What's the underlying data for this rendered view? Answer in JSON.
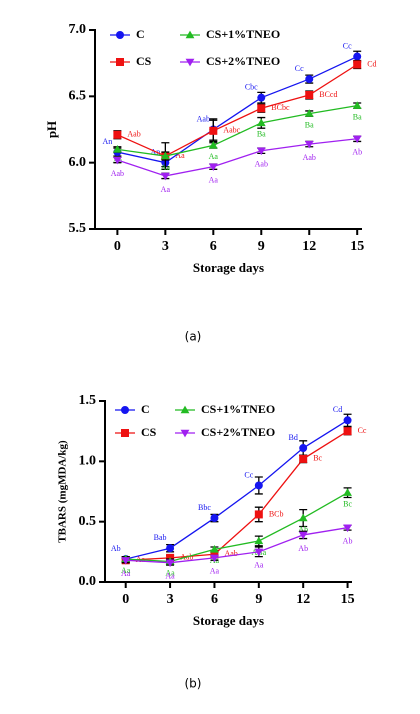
{
  "chart_data": [
    {
      "type": "line",
      "caption": "(a)",
      "ylabel": "pH",
      "xlabel": "Storage days",
      "x": [
        0,
        3,
        6,
        9,
        12,
        15
      ],
      "xlim": [
        -1.4,
        15.3
      ],
      "xticks": [
        0,
        3,
        6,
        9,
        12,
        15
      ],
      "ylim": [
        5.5,
        7.0
      ],
      "yticks": [
        {
          "value": 5.5,
          "label": "5.5"
        },
        {
          "value": 6.0,
          "label": "6.0"
        },
        {
          "value": 6.5,
          "label": "6.5"
        },
        {
          "value": 7.0,
          "label": "7.0"
        }
      ],
      "series": [
        {
          "name": "C",
          "color": "#1515f0",
          "marker": "circle",
          "values": [
            6.08,
            6.0,
            6.25,
            6.49,
            6.63,
            6.8
          ],
          "errors": [
            0.03,
            0.03,
            0.08,
            0.04,
            0.03,
            0.04
          ],
          "point_labels": [
            "An",
            "An",
            "Aab",
            "Cbc",
            "Cc",
            "Cc"
          ]
        },
        {
          "name": "CS",
          "color": "#ee1111",
          "marker": "square",
          "values": [
            6.21,
            6.05,
            6.24,
            6.41,
            6.51,
            6.74
          ],
          "errors": [
            0.03,
            0.1,
            0.08,
            0.03,
            0.03,
            0.03
          ],
          "point_labels": [
            "Aab",
            "Aa",
            "Aabc",
            "BCbc",
            "BCcd",
            "Cd"
          ]
        },
        {
          "name": "CS+1%TNEO",
          "color": "#22bb22",
          "marker": "triangle-up",
          "values": [
            6.1,
            6.05,
            6.13,
            6.3,
            6.37,
            6.43
          ],
          "errors": [
            0.02,
            0.03,
            0.02,
            0.04,
            0.02,
            0.02
          ],
          "point_labels": [
            "Aa",
            "Aa",
            "Aa",
            "Ba",
            "Ba",
            "Ba"
          ]
        },
        {
          "name": "CS+2%TNEO",
          "color": "#a020f0",
          "marker": "triangle-down",
          "values": [
            6.02,
            5.9,
            5.97,
            6.09,
            6.14,
            6.18
          ],
          "errors": [
            0.02,
            0.02,
            0.02,
            0.02,
            0.02,
            0.02
          ],
          "point_labels": [
            "Aab",
            "Aa",
            "Aa",
            "Aab",
            "Aab",
            "Ab"
          ]
        }
      ]
    },
    {
      "type": "line",
      "caption": "(b)",
      "ylabel": "TBARS (mgMDA/kg)",
      "xlabel": "Storage days",
      "x": [
        0,
        3,
        6,
        9,
        12,
        15
      ],
      "xlim": [
        -1.4,
        15.3
      ],
      "xticks": [
        0,
        3,
        6,
        9,
        12,
        15
      ],
      "ylim": [
        0.0,
        1.5
      ],
      "yticks": [
        {
          "value": 0.0,
          "label": "0.0"
        },
        {
          "value": 0.5,
          "label": "0.5"
        },
        {
          "value": 1.0,
          "label": "1.0"
        },
        {
          "value": 1.5,
          "label": "1.5"
        }
      ],
      "series": [
        {
          "name": "C",
          "color": "#1515f0",
          "marker": "circle",
          "values": [
            0.19,
            0.28,
            0.53,
            0.8,
            1.11,
            1.34
          ],
          "errors": [
            0.02,
            0.03,
            0.03,
            0.07,
            0.06,
            0.05
          ],
          "point_labels": [
            "Ab",
            "Bab",
            "Bbc",
            "Cc",
            "Bd",
            "Cd"
          ]
        },
        {
          "name": "CS",
          "color": "#ee1111",
          "marker": "square",
          "values": [
            0.18,
            0.2,
            0.23,
            0.56,
            1.02,
            1.25
          ],
          "errors": [
            0.02,
            0.02,
            0.03,
            0.06,
            0.03,
            0.03
          ],
          "point_labels": [
            "Aa",
            "Aab",
            "Aab",
            "BCb",
            "Bc",
            "Cc"
          ]
        },
        {
          "name": "CS+1%TNEO",
          "color": "#22bb22",
          "marker": "triangle-up",
          "values": [
            0.19,
            0.17,
            0.27,
            0.34,
            0.53,
            0.74
          ],
          "errors": [
            0.02,
            0.02,
            0.02,
            0.04,
            0.07,
            0.04
          ],
          "point_labels": [
            "Aa",
            "Aa",
            "Aa",
            "ABa",
            "Ab",
            "Bc"
          ]
        },
        {
          "name": "CS+2%TNEO",
          "color": "#a020f0",
          "marker": "triangle-down",
          "values": [
            0.18,
            0.16,
            0.2,
            0.25,
            0.39,
            0.45
          ],
          "errors": [
            0.02,
            0.02,
            0.02,
            0.04,
            0.03,
            0.02
          ],
          "point_labels": [
            "Aa",
            "Aa",
            "Aa",
            "Aa",
            "Ab",
            "Ab"
          ]
        }
      ]
    }
  ]
}
